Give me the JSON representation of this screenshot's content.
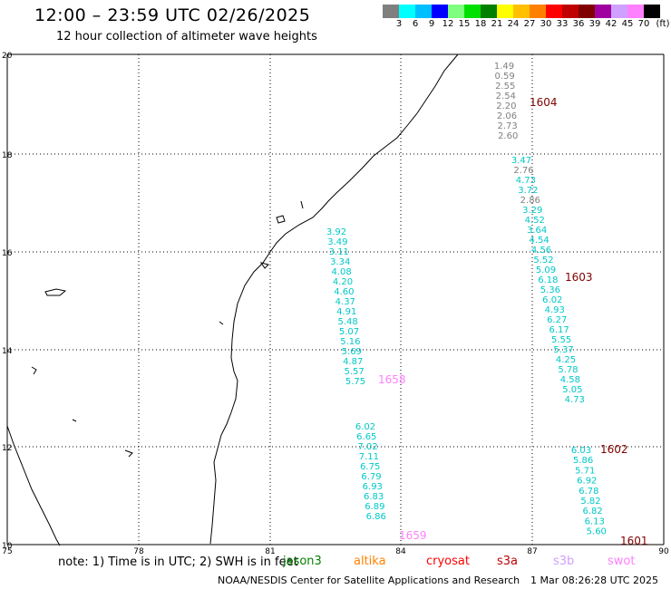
{
  "title": "12:00 – 23:59 UTC 02/26/2025",
  "subtitle": "12 hour collection of altimeter wave heights",
  "color_scale": {
    "colors": [
      "#7f7f7f",
      "#00ffff",
      "#00bfff",
      "#0000ff",
      "#7fff7f",
      "#00e000",
      "#008000",
      "#ffff00",
      "#ffc000",
      "#ff8000",
      "#ff0000",
      "#c00000",
      "#800000",
      "#a000a0",
      "#cfa0ff",
      "#ff80ff",
      "#000000"
    ],
    "labels": [
      "3",
      "6",
      "9",
      "12",
      "15",
      "18",
      "21",
      "24",
      "27",
      "30",
      "33",
      "36",
      "39",
      "42",
      "45",
      "70"
    ],
    "unit": "(ft)"
  },
  "axes": {
    "lat_labels": [
      "20",
      "18",
      "16",
      "14",
      "12",
      "10"
    ],
    "lon_labels": [
      "75",
      "78",
      "81",
      "84",
      "87",
      "90"
    ]
  },
  "tracks": [
    {
      "name": "1604",
      "name_color": "#800000",
      "points": [
        {
          "v": "1.49",
          "c": "#7f7f7f"
        },
        {
          "v": "0.59",
          "c": "#7f7f7f"
        },
        {
          "v": "2.55",
          "c": "#7f7f7f"
        },
        {
          "v": "2.54",
          "c": "#7f7f7f"
        },
        {
          "v": "2.20",
          "c": "#7f7f7f"
        },
        {
          "v": "2.06",
          "c": "#7f7f7f"
        },
        {
          "v": "2.73",
          "c": "#7f7f7f"
        },
        {
          "v": "2.60",
          "c": "#7f7f7f"
        }
      ]
    },
    {
      "name": "1603",
      "name_color": "#800000",
      "points": [
        {
          "v": "3.47",
          "c": "#00c8c8"
        },
        {
          "v": "2.76",
          "c": "#7f7f7f"
        },
        {
          "v": "4.73",
          "c": "#00c8c8"
        },
        {
          "v": "3.72",
          "c": "#00c8c8"
        },
        {
          "v": "2.86",
          "c": "#7f7f7f"
        },
        {
          "v": "3.29",
          "c": "#00c8c8"
        },
        {
          "v": "4.52",
          "c": "#00c8c8"
        },
        {
          "v": "3.64",
          "c": "#00c8c8"
        },
        {
          "v": "4.54",
          "c": "#00c8c8"
        },
        {
          "v": "4.56",
          "c": "#00c8c8"
        },
        {
          "v": "5.52",
          "c": "#00c8c8"
        },
        {
          "v": "5.09",
          "c": "#00c8c8"
        },
        {
          "v": "6.18",
          "c": "#00c8c8"
        },
        {
          "v": "5.36",
          "c": "#00c8c8"
        },
        {
          "v": "6.02",
          "c": "#00c8c8"
        },
        {
          "v": "4.93",
          "c": "#00c8c8"
        },
        {
          "v": "6.27",
          "c": "#00c8c8"
        },
        {
          "v": "6.17",
          "c": "#00c8c8"
        },
        {
          "v": "5.55",
          "c": "#00c8c8"
        },
        {
          "v": "5.37",
          "c": "#00c8c8"
        },
        {
          "v": "4.25",
          "c": "#00c8c8"
        },
        {
          "v": "5.78",
          "c": "#00c8c8"
        },
        {
          "v": "4.58",
          "c": "#00c8c8"
        },
        {
          "v": "5.05",
          "c": "#00c8c8"
        },
        {
          "v": "4.73",
          "c": "#00c8c8"
        }
      ]
    },
    {
      "name": "1602",
      "name_color": "#800000",
      "points": [
        {
          "v": "6.03",
          "c": "#00c8c8"
        },
        {
          "v": "5.86",
          "c": "#00c8c8"
        },
        {
          "v": "5.71",
          "c": "#00c8c8"
        },
        {
          "v": "6.92",
          "c": "#00c8c8"
        },
        {
          "v": "6.78",
          "c": "#00c8c8"
        },
        {
          "v": "5.82",
          "c": "#00c8c8"
        },
        {
          "v": "6.82",
          "c": "#00c8c8"
        },
        {
          "v": "6.13",
          "c": "#00c8c8"
        },
        {
          "v": "5.60",
          "c": "#00c8c8"
        }
      ]
    },
    {
      "name": "1601",
      "name_color": "#800000",
      "points": []
    },
    {
      "name": "1658",
      "name_color": "#ff80ff",
      "points": [
        {
          "v": "3.92",
          "c": "#00c8c8"
        },
        {
          "v": "3.49",
          "c": "#00c8c8"
        },
        {
          "v": "3.11",
          "c": "#00c8c8"
        },
        {
          "v": "3.34",
          "c": "#00c8c8"
        },
        {
          "v": "4.08",
          "c": "#00c8c8"
        },
        {
          "v": "4.20",
          "c": "#00c8c8"
        },
        {
          "v": "4.60",
          "c": "#00c8c8"
        },
        {
          "v": "4.37",
          "c": "#00c8c8"
        },
        {
          "v": "4.91",
          "c": "#00c8c8"
        },
        {
          "v": "5.48",
          "c": "#00c8c8"
        },
        {
          "v": "5.07",
          "c": "#00c8c8"
        },
        {
          "v": "5.16",
          "c": "#00c8c8"
        },
        {
          "v": "5.69",
          "c": "#00c8c8"
        },
        {
          "v": "4.87",
          "c": "#00c8c8"
        },
        {
          "v": "5.57",
          "c": "#00c8c8"
        },
        {
          "v": "5.75",
          "c": "#00c8c8"
        }
      ]
    },
    {
      "name": "1659",
      "name_color": "#ff80ff",
      "points": [
        {
          "v": "6.02",
          "c": "#00c8c8"
        },
        {
          "v": "6.65",
          "c": "#00c8c8"
        },
        {
          "v": "7.02",
          "c": "#00c8c8"
        },
        {
          "v": "7.11",
          "c": "#00c8c8"
        },
        {
          "v": "6.75",
          "c": "#00c8c8"
        },
        {
          "v": "6.79",
          "c": "#00c8c8"
        },
        {
          "v": "6.93",
          "c": "#00c8c8"
        },
        {
          "v": "6.83",
          "c": "#00c8c8"
        },
        {
          "v": "6.89",
          "c": "#00c8c8"
        },
        {
          "v": "6.86",
          "c": "#00c8c8"
        }
      ]
    }
  ],
  "footer": {
    "note": "note: 1) Time is in UTC; 2) SWH is in feet",
    "satellites": [
      {
        "label": "jason3",
        "color": "#008000"
      },
      {
        "label": "altika",
        "color": "#ff8000"
      },
      {
        "label": "cryosat",
        "color": "#ff0000"
      },
      {
        "label": "s3a",
        "color": "#c00000"
      },
      {
        "label": "s3b",
        "color": "#cfa0ff"
      },
      {
        "label": "swot",
        "color": "#ff80ff"
      }
    ],
    "credit": "NOAA/NESDIS Center for Satellite Applications and Research",
    "timestamp": "1 Mar 08:26:28 UTC 2025"
  }
}
